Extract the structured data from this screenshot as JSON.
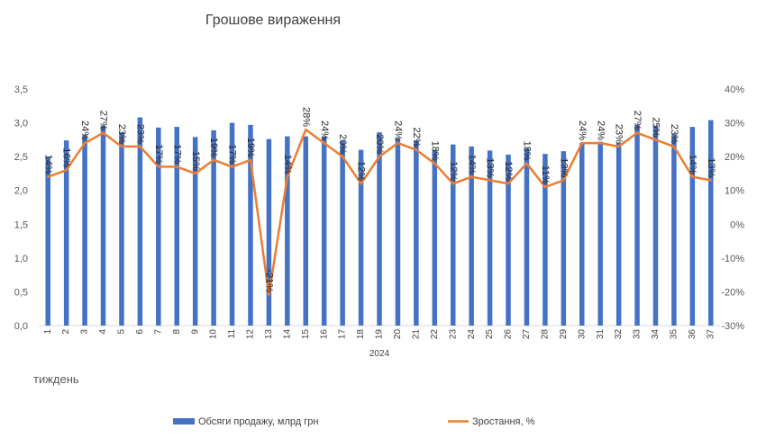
{
  "chart_data": {
    "type": "bar",
    "title": "Грошове вираження",
    "xlabel": "тиждень",
    "x_group_label": "2024",
    "categories": [
      "1",
      "2",
      "3",
      "4",
      "5",
      "6",
      "7",
      "8",
      "9",
      "10",
      "11",
      "12",
      "13",
      "14",
      "15",
      "16",
      "17",
      "18",
      "19",
      "20",
      "21",
      "22",
      "23",
      "24",
      "25",
      "26",
      "27",
      "28",
      "29",
      "30",
      "31",
      "32",
      "33",
      "34",
      "35",
      "36",
      "37"
    ],
    "y_left": {
      "ylim": [
        0,
        3.5
      ],
      "ticks": [
        "0,0",
        "0,5",
        "1,0",
        "1,5",
        "2,0",
        "2,5",
        "3,0",
        "3,5"
      ]
    },
    "y_right": {
      "ylim": [
        -30,
        40
      ],
      "ticks": [
        "-30%",
        "-20%",
        "-10%",
        "0%",
        "10%",
        "20%",
        "30%",
        "40%"
      ]
    },
    "series": [
      {
        "name": "Обсяги продажу, млрд грн",
        "type": "bar",
        "axis": "left",
        "color": "#4472C4",
        "values": [
          2.5,
          2.74,
          2.82,
          2.96,
          2.86,
          3.08,
          2.93,
          2.94,
          2.79,
          2.89,
          3.0,
          2.97,
          2.76,
          2.8,
          2.8,
          2.8,
          2.73,
          2.6,
          2.86,
          2.77,
          2.74,
          2.6,
          2.68,
          2.65,
          2.59,
          2.53,
          2.62,
          2.54,
          2.58,
          2.7,
          2.72,
          2.7,
          2.97,
          2.96,
          2.83,
          2.94,
          3.04
        ]
      },
      {
        "name": "Зростання, %",
        "type": "line",
        "axis": "right",
        "color": "#ED7D31",
        "values": [
          14,
          16,
          24,
          27,
          23,
          23,
          17,
          17,
          15,
          19,
          17,
          19,
          -21,
          14,
          28,
          24,
          20,
          12,
          20,
          24,
          22,
          18,
          12,
          14,
          13,
          12,
          18,
          11,
          13,
          24,
          24,
          23,
          27,
          25,
          23,
          14,
          13
        ],
        "labels": [
          "14%",
          "16%",
          "24%",
          "27%",
          "23%",
          "23%",
          "17%",
          "17%",
          "15%",
          "19%",
          "17%",
          "19%",
          "-21%",
          "14%",
          "28%",
          "24%",
          "20%",
          "12%",
          "20%",
          "24%",
          "22%",
          "18%",
          "12%",
          "14%",
          "13%",
          "12%",
          "18%",
          "11%",
          "13%",
          "24%",
          "24%",
          "23%",
          "27%",
          "25%",
          "23%",
          "14%",
          "13%"
        ]
      }
    ],
    "legend": "bottom",
    "grid": false
  }
}
